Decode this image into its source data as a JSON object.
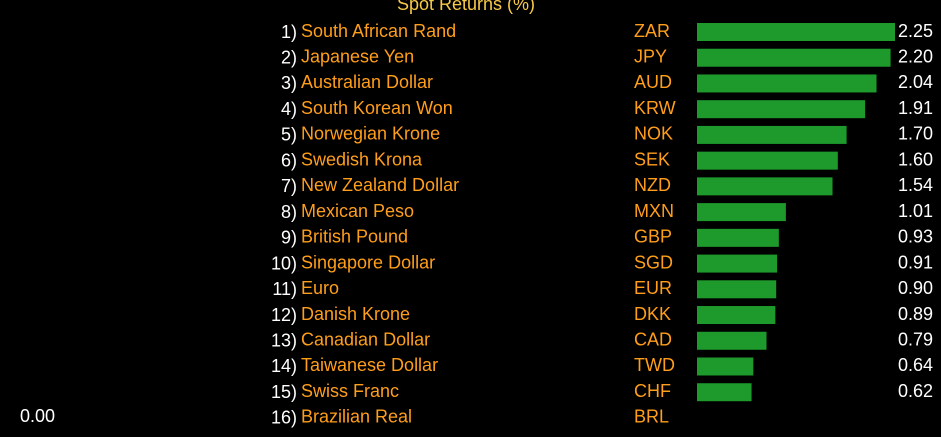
{
  "chart_data": {
    "type": "hbar",
    "title": "Spot Returns (%)",
    "ranks": [
      "1)",
      "2)",
      "3)",
      "4)",
      "5)",
      "6)",
      "7)",
      "8)",
      "9)",
      "10)",
      "11)",
      "12)",
      "13)",
      "14)",
      "15)",
      "16)"
    ],
    "categories": [
      "South African Rand",
      "Japanese Yen",
      "Australian Dollar",
      "South Korean Won",
      "Norwegian Krone",
      "Swedish Krona",
      "New Zealand Dollar",
      "Mexican Peso",
      "British Pound",
      "Singapore Dollar",
      "Euro",
      "Danish Krone",
      "Canadian Dollar",
      "Taiwanese Dollar",
      "Swiss Franc",
      "Brazilian Real"
    ],
    "codes": [
      "ZAR",
      "JPY",
      "AUD",
      "KRW",
      "NOK",
      "SEK",
      "NZD",
      "MXN",
      "GBP",
      "SGD",
      "EUR",
      "DKK",
      "CAD",
      "TWD",
      "CHF",
      "BRL"
    ],
    "values": [
      2.25,
      2.2,
      2.04,
      1.91,
      1.7,
      1.6,
      1.54,
      1.01,
      0.93,
      0.91,
      0.9,
      0.89,
      0.79,
      0.64,
      0.62,
      null
    ],
    "value_labels": [
      "2.25",
      "2.20",
      "2.04",
      "1.91",
      "1.70",
      "1.60",
      "1.54",
      "1.01",
      "0.93",
      "0.91",
      "0.90",
      "0.89",
      "0.79",
      "0.64",
      "0.62",
      null
    ],
    "color": "#1e9a2c",
    "xlim": [
      0,
      2.25
    ],
    "left_label": "0.00"
  }
}
